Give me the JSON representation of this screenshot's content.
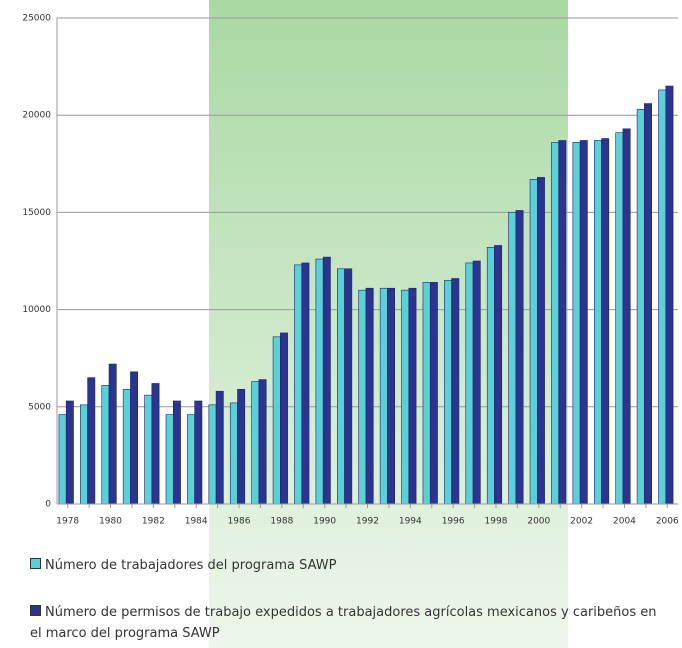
{
  "chart_data": {
    "type": "bar",
    "categories": [
      "1978",
      null,
      "1980",
      null,
      "1982",
      null,
      "1984",
      null,
      "1986",
      null,
      "1988",
      null,
      "1990",
      null,
      "1992",
      null,
      "1994",
      null,
      "1996",
      null,
      "1998",
      null,
      "2000",
      null,
      "2002",
      null,
      "2004",
      null,
      "2006"
    ],
    "series": [
      {
        "name": "Número de trabajadores del programa SAWP",
        "color": "#5cd0d8",
        "values": [
          4600,
          5100,
          6100,
          5900,
          5600,
          4600,
          4600,
          5100,
          5200,
          6300,
          8600,
          12300,
          12600,
          12100,
          11000,
          11100,
          11000,
          11400,
          11500,
          12400,
          13200,
          15000,
          16700,
          18600,
          18600,
          18700,
          19100,
          20300,
          21300
        ]
      },
      {
        "name": "Número de permisos de trabajo expedidos a trabajadores agrícolas mexicanos y caribeños en el marco del programa SAWP",
        "color": "#2b3590",
        "values": [
          5300,
          6500,
          7200,
          6800,
          6200,
          5300,
          5300,
          5800,
          5900,
          6400,
          8800,
          12400,
          12700,
          12100,
          11100,
          11100,
          11100,
          11400,
          11600,
          12500,
          13300,
          15100,
          16800,
          18700,
          18700,
          18800,
          19300,
          20600,
          21500
        ]
      }
    ],
    "ylim": [
      0,
      25000
    ],
    "yticks": [
      0,
      5000,
      10000,
      15000,
      20000,
      25000
    ],
    "grid": true
  }
}
